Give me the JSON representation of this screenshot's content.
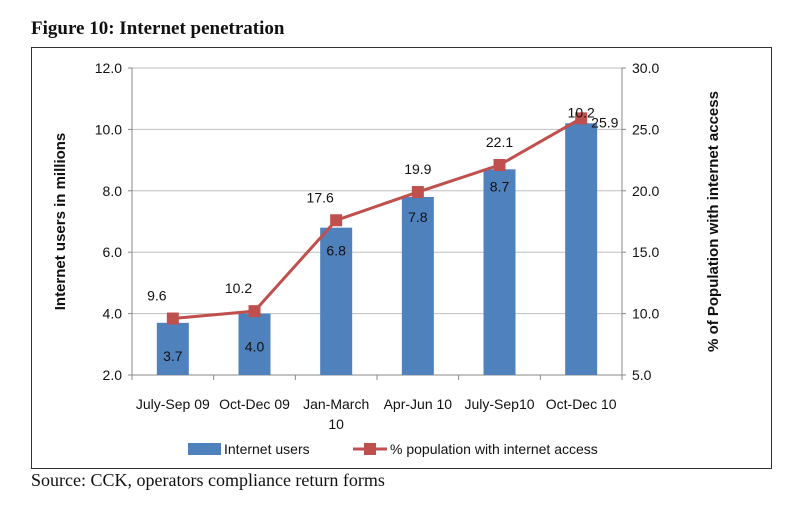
{
  "figure_title": "Figure 10: Internet penetration",
  "source": "Source: CCK, operators compliance return forms",
  "colors": {
    "bar": "#4F81BD",
    "line": "#C0504D",
    "grid": "#BFBFBF"
  },
  "chart_data": {
    "type": "bar+line",
    "title": "Figure 10: Internet penetration",
    "categories": [
      [
        "July-Sep 09"
      ],
      [
        "Oct-Dec 09"
      ],
      [
        "Jan-March",
        "10"
      ],
      [
        "Apr-Jun 10"
      ],
      [
        "July-Sep10"
      ],
      [
        "Oct-Dec 10"
      ]
    ],
    "series": [
      {
        "name": "Internet users",
        "type": "bar",
        "axis": "left",
        "values": [
          3.7,
          4.0,
          6.8,
          7.8,
          8.7,
          10.2
        ],
        "labels": [
          "3.7",
          "4.0",
          "6.8",
          "7.8",
          "8.7",
          "10.2"
        ]
      },
      {
        "name": "% population with internet access",
        "type": "line",
        "axis": "right",
        "values": [
          9.6,
          10.2,
          17.6,
          19.9,
          22.1,
          25.9
        ],
        "labels": [
          "9.6",
          "10.2",
          "17.6",
          "19.9",
          "22.1",
          "25.9"
        ]
      }
    ],
    "ylabel": "Internet users in millions",
    "y2label": "% of Population with internet access",
    "ylim": [
      2,
      12
    ],
    "y2lim": [
      5,
      30
    ],
    "yticks": [
      "2.0",
      "4.0",
      "6.0",
      "8.0",
      "10.0",
      "12.0"
    ],
    "y2ticks": [
      "5.0",
      "10.0",
      "15.0",
      "20.0",
      "25.0",
      "30.0"
    ],
    "grid": true,
    "legend": "bottom"
  }
}
